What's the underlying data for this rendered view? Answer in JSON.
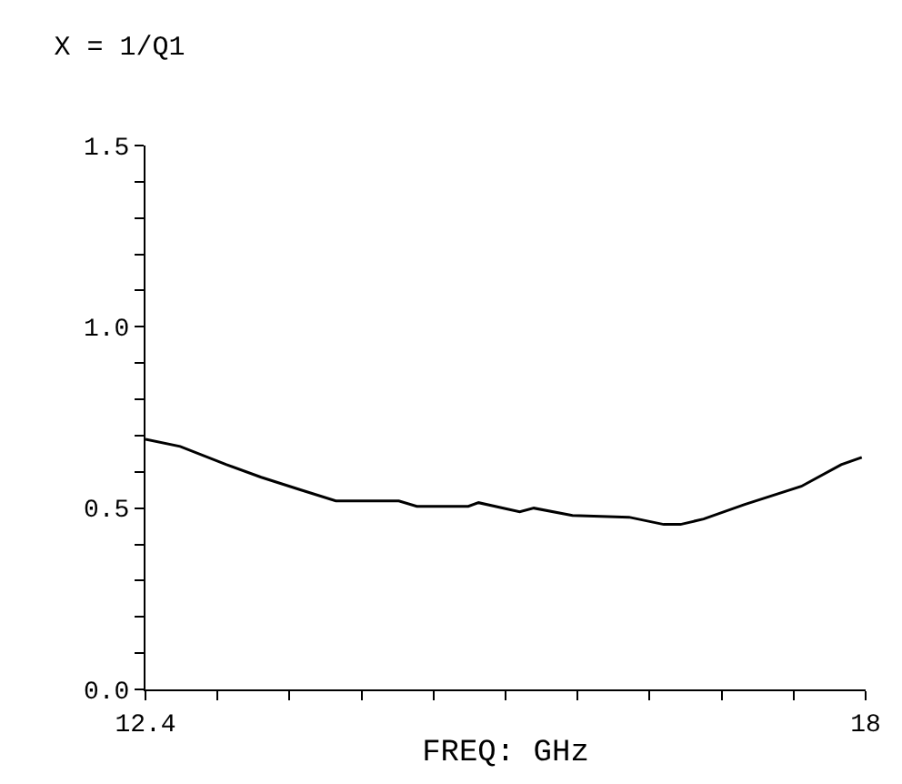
{
  "chart_data": {
    "type": "line",
    "title": "X = 1/Q1",
    "xlabel": "FREQ: GHz",
    "x": [
      12.4,
      12.67,
      13.03,
      13.3,
      13.61,
      13.88,
      14.37,
      14.51,
      14.91,
      14.99,
      15.31,
      15.42,
      15.72,
      16.16,
      16.43,
      16.56,
      16.74,
      17.06,
      17.5,
      17.81,
      17.97
    ],
    "values": [
      0.69,
      0.67,
      0.62,
      0.585,
      0.55,
      0.52,
      0.52,
      0.505,
      0.505,
      0.515,
      0.49,
      0.5,
      0.48,
      0.475,
      0.455,
      0.455,
      0.47,
      0.51,
      0.56,
      0.62,
      0.64
    ],
    "color": "#000000",
    "xlim": [
      12.4,
      18
    ],
    "xticks": [
      12.4,
      {
        "value": 12.96,
        "label": null
      },
      {
        "value": 13.52,
        "label": null
      },
      {
        "value": 14.08,
        "label": null
      },
      {
        "value": 14.64,
        "label": null
      },
      {
        "value": 15.2,
        "label": null
      },
      {
        "value": 15.76,
        "label": null
      },
      {
        "value": 16.32,
        "label": null
      },
      {
        "value": 16.88,
        "label": null
      },
      {
        "value": 17.44,
        "label": null
      },
      18
    ],
    "ylim": [
      0,
      1.5
    ],
    "yticks": [
      {
        "value": 0,
        "label": "0.0"
      },
      {
        "value": 0.1,
        "label": null
      },
      {
        "value": 0.2,
        "label": null
      },
      {
        "value": 0.3,
        "label": null
      },
      {
        "value": 0.4,
        "label": null
      },
      0.5,
      {
        "value": 0.6,
        "label": null
      },
      {
        "value": 0.7,
        "label": null
      },
      {
        "value": 0.8,
        "label": null
      },
      {
        "value": 0.9,
        "label": null
      },
      {
        "value": 1,
        "label": "1.0"
      },
      {
        "value": 1.1,
        "label": null
      },
      {
        "value": 1.2,
        "label": null
      },
      {
        "value": 1.3,
        "label": null
      },
      {
        "value": 1.4,
        "label": null
      },
      1.5
    ],
    "legend": false,
    "marker": "none",
    "line_style": "solid"
  }
}
